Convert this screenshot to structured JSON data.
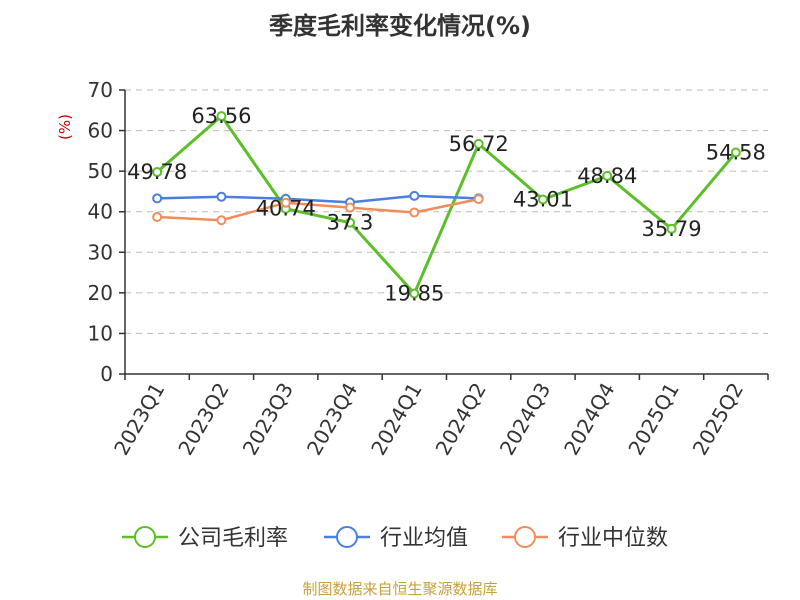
{
  "chart_data": {
    "type": "line",
    "title": "季度毛利率变化情况(%)",
    "ylabel": "(%)",
    "xlabel": "",
    "ylim": [
      0,
      70
    ],
    "yticks": [
      0,
      10,
      20,
      30,
      40,
      50,
      60,
      70
    ],
    "grid": true,
    "legend_position": "bottom",
    "categories": [
      "2023Q1",
      "2023Q2",
      "2023Q3",
      "2023Q4",
      "2024Q1",
      "2024Q2",
      "2024Q3",
      "2024Q4",
      "2025Q1",
      "2025Q2"
    ],
    "series": [
      {
        "name": "公司毛利率",
        "color": "#5cbf2a",
        "values": [
          49.78,
          63.56,
          40.74,
          37.3,
          19.85,
          56.72,
          43.01,
          48.84,
          35.79,
          54.58
        ],
        "labels": [
          "49.78",
          "63.56",
          "40.74",
          "37.3",
          "19.85",
          "56.72",
          "43.01",
          "48.84",
          "35.79",
          "54.58"
        ]
      },
      {
        "name": "行业均值",
        "color": "#4a7fe0",
        "values": [
          43.3,
          43.7,
          43.2,
          42.3,
          43.9,
          43.3,
          null,
          null,
          null,
          null
        ]
      },
      {
        "name": "行业中位数",
        "color": "#f28c5a",
        "values": [
          38.7,
          37.9,
          42.2,
          41.0,
          39.8,
          43.1,
          null,
          null,
          null,
          null
        ]
      }
    ]
  },
  "source_note": "制图数据来自恒生聚源数据库"
}
